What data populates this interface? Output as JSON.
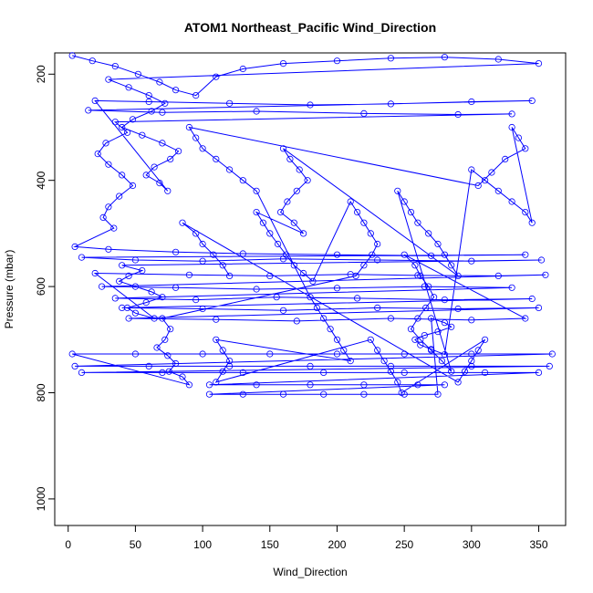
{
  "chart_data": {
    "type": "scatter",
    "title": "ATOM1 Northeast_Pacific Wind_Direction",
    "xlabel": "Wind_Direction",
    "ylabel": "Pressure (mbar)",
    "xlim": [
      -10,
      370
    ],
    "ylim": [
      1050,
      160
    ],
    "y_inverted": true,
    "x_ticks": [
      0,
      50,
      100,
      150,
      200,
      250,
      300,
      350
    ],
    "x_tick_labels": [
      "0",
      "50",
      "100",
      "150",
      "200",
      "250",
      "300",
      "350"
    ],
    "y_ticks": [
      200,
      400,
      600,
      800,
      1000
    ],
    "y_tick_labels": [
      "200",
      "400",
      "600",
      "800",
      "1000"
    ],
    "grid": false,
    "legend": "none",
    "marker": "open-circle",
    "connect_points": true,
    "series": [
      {
        "color": "#0000ff",
        "points": [
          [
            3,
            165
          ],
          [
            18,
            175
          ],
          [
            35,
            185
          ],
          [
            52,
            200
          ],
          [
            68,
            215
          ],
          [
            80,
            230
          ],
          [
            95,
            240
          ],
          [
            110,
            205
          ],
          [
            130,
            190
          ],
          [
            160,
            180
          ],
          [
            200,
            175
          ],
          [
            240,
            170
          ],
          [
            280,
            168
          ],
          [
            320,
            172
          ],
          [
            350,
            180
          ],
          [
            30,
            210
          ],
          [
            45,
            225
          ],
          [
            60,
            240
          ],
          [
            72,
            255
          ],
          [
            62,
            270
          ],
          [
            48,
            285
          ],
          [
            40,
            300
          ],
          [
            55,
            315
          ],
          [
            70,
            330
          ],
          [
            82,
            345
          ],
          [
            76,
            360
          ],
          [
            64,
            375
          ],
          [
            58,
            390
          ],
          [
            68,
            405
          ],
          [
            74,
            420
          ],
          [
            20,
            250
          ],
          [
            60,
            252
          ],
          [
            120,
            255
          ],
          [
            180,
            258
          ],
          [
            240,
            256
          ],
          [
            300,
            252
          ],
          [
            345,
            250
          ],
          [
            15,
            268
          ],
          [
            70,
            272
          ],
          [
            140,
            270
          ],
          [
            220,
            274
          ],
          [
            290,
            276
          ],
          [
            330,
            275
          ],
          [
            35,
            290
          ],
          [
            44,
            310
          ],
          [
            28,
            330
          ],
          [
            22,
            350
          ],
          [
            30,
            370
          ],
          [
            40,
            390
          ],
          [
            48,
            410
          ],
          [
            38,
            430
          ],
          [
            30,
            450
          ],
          [
            26,
            470
          ],
          [
            34,
            490
          ],
          [
            5,
            525
          ],
          [
            30,
            530
          ],
          [
            80,
            535
          ],
          [
            130,
            538
          ],
          [
            200,
            540
          ],
          [
            270,
            542
          ],
          [
            340,
            540
          ],
          [
            10,
            545
          ],
          [
            50,
            550
          ],
          [
            100,
            552
          ],
          [
            160,
            548
          ],
          [
            230,
            550
          ],
          [
            300,
            552
          ],
          [
            352,
            550
          ],
          [
            40,
            560
          ],
          [
            55,
            570
          ],
          [
            45,
            580
          ],
          [
            38,
            590
          ],
          [
            50,
            600
          ],
          [
            62,
            610
          ],
          [
            70,
            620
          ],
          [
            58,
            630
          ],
          [
            44,
            640
          ],
          [
            50,
            650
          ],
          [
            64,
            660
          ],
          [
            20,
            575
          ],
          [
            90,
            578
          ],
          [
            150,
            580
          ],
          [
            210,
            577
          ],
          [
            260,
            579
          ],
          [
            320,
            580
          ],
          [
            355,
            578
          ],
          [
            25,
            600
          ],
          [
            80,
            602
          ],
          [
            140,
            605
          ],
          [
            200,
            603
          ],
          [
            265,
            600
          ],
          [
            330,
            602
          ],
          [
            35,
            622
          ],
          [
            95,
            625
          ],
          [
            155,
            620
          ],
          [
            215,
            622
          ],
          [
            280,
            625
          ],
          [
            345,
            623
          ],
          [
            40,
            640
          ],
          [
            100,
            642
          ],
          [
            160,
            645
          ],
          [
            230,
            640
          ],
          [
            290,
            642
          ],
          [
            350,
            640
          ],
          [
            45,
            660
          ],
          [
            110,
            662
          ],
          [
            170,
            665
          ],
          [
            240,
            660
          ],
          [
            300,
            663
          ],
          [
            340,
            660
          ],
          [
            250,
            540
          ],
          [
            258,
            560
          ],
          [
            262,
            580
          ],
          [
            268,
            600
          ],
          [
            272,
            620
          ],
          [
            266,
            640
          ],
          [
            260,
            660
          ],
          [
            255,
            680
          ],
          [
            262,
            700
          ],
          [
            270,
            720
          ],
          [
            278,
            740
          ],
          [
            285,
            760
          ],
          [
            245,
            420
          ],
          [
            250,
            440
          ],
          [
            255,
            460
          ],
          [
            260,
            480
          ],
          [
            268,
            500
          ],
          [
            275,
            520
          ],
          [
            280,
            540
          ],
          [
            285,
            560
          ],
          [
            290,
            580
          ],
          [
            160,
            340
          ],
          [
            165,
            360
          ],
          [
            172,
            380
          ],
          [
            178,
            400
          ],
          [
            170,
            420
          ],
          [
            163,
            440
          ],
          [
            158,
            460
          ],
          [
            168,
            480
          ],
          [
            175,
            500
          ],
          [
            140,
            460
          ],
          [
            145,
            480
          ],
          [
            150,
            500
          ],
          [
            156,
            520
          ],
          [
            162,
            540
          ],
          [
            168,
            560
          ],
          [
            175,
            575
          ],
          [
            182,
            590
          ],
          [
            210,
            440
          ],
          [
            215,
            460
          ],
          [
            220,
            480
          ],
          [
            225,
            500
          ],
          [
            230,
            520
          ],
          [
            226,
            540
          ],
          [
            220,
            560
          ],
          [
            214,
            580
          ],
          [
            70,
            660
          ],
          [
            76,
            680
          ],
          [
            72,
            700
          ],
          [
            66,
            715
          ],
          [
            74,
            730
          ],
          [
            80,
            745
          ],
          [
            75,
            760
          ],
          [
            85,
            770
          ],
          [
            90,
            785
          ],
          [
            3,
            727
          ],
          [
            50,
            727
          ],
          [
            100,
            727
          ],
          [
            150,
            727
          ],
          [
            200,
            727
          ],
          [
            250,
            727
          ],
          [
            300,
            727
          ],
          [
            360,
            727
          ],
          [
            5,
            750
          ],
          [
            60,
            750
          ],
          [
            120,
            750
          ],
          [
            180,
            750
          ],
          [
            240,
            750
          ],
          [
            300,
            750
          ],
          [
            358,
            750
          ],
          [
            10,
            762
          ],
          [
            70,
            762
          ],
          [
            130,
            762
          ],
          [
            190,
            762
          ],
          [
            250,
            762
          ],
          [
            310,
            762
          ],
          [
            350,
            762
          ],
          [
            105,
            785
          ],
          [
            140,
            785
          ],
          [
            180,
            785
          ],
          [
            220,
            785
          ],
          [
            260,
            785
          ],
          [
            280,
            785
          ],
          [
            105,
            803
          ],
          [
            130,
            803
          ],
          [
            160,
            803
          ],
          [
            190,
            803
          ],
          [
            220,
            803
          ],
          [
            250,
            803
          ],
          [
            275,
            803
          ],
          [
            270,
            660
          ],
          [
            280,
            668
          ],
          [
            285,
            676
          ],
          [
            275,
            685
          ],
          [
            265,
            692
          ],
          [
            258,
            700
          ],
          [
            262,
            710
          ],
          [
            270,
            718
          ],
          [
            280,
            728
          ],
          [
            300,
            380
          ],
          [
            310,
            400
          ],
          [
            320,
            420
          ],
          [
            330,
            440
          ],
          [
            340,
            460
          ],
          [
            345,
            480
          ],
          [
            330,
            300
          ],
          [
            335,
            320
          ],
          [
            340,
            340
          ],
          [
            325,
            360
          ],
          [
            315,
            385
          ],
          [
            305,
            410
          ],
          [
            90,
            300
          ],
          [
            95,
            320
          ],
          [
            100,
            340
          ],
          [
            110,
            360
          ],
          [
            120,
            380
          ],
          [
            130,
            400
          ],
          [
            140,
            420
          ],
          [
            180,
            620
          ],
          [
            185,
            640
          ],
          [
            190,
            660
          ],
          [
            195,
            680
          ],
          [
            200,
            700
          ],
          [
            205,
            720
          ],
          [
            210,
            740
          ],
          [
            110,
            700
          ],
          [
            115,
            720
          ],
          [
            120,
            740
          ],
          [
            115,
            760
          ],
          [
            110,
            780
          ],
          [
            225,
            700
          ],
          [
            230,
            720
          ],
          [
            235,
            740
          ],
          [
            240,
            760
          ],
          [
            245,
            780
          ],
          [
            248,
            800
          ],
          [
            310,
            700
          ],
          [
            305,
            720
          ],
          [
            300,
            740
          ],
          [
            295,
            760
          ],
          [
            290,
            780
          ],
          [
            85,
            480
          ],
          [
            95,
            500
          ],
          [
            100,
            520
          ],
          [
            108,
            540
          ],
          [
            115,
            560
          ],
          [
            120,
            580
          ]
        ]
      }
    ]
  }
}
